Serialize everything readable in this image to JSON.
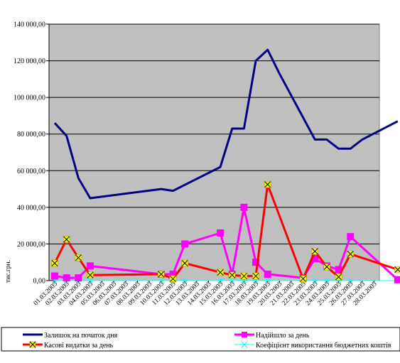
{
  "chart_data": {
    "type": "line",
    "ylabel": "тис.грн.",
    "ylim": [
      0,
      140000
    ],
    "yticks": [
      0,
      20000,
      40000,
      60000,
      80000,
      100000,
      120000,
      140000
    ],
    "ytick_labels": [
      "0,00",
      "20 000,00",
      "40 000,00",
      "60 000,00",
      "80 000,00",
      "100 000,00",
      "120 000,00",
      "140 000,00"
    ],
    "categories": [
      "01.03.2005",
      "02.03.2005",
      "03.03.2005",
      "04.03.2005",
      "05.03.2005",
      "06.03.2005",
      "07.03.2005",
      "08.03.2005",
      "09.03.2005",
      "10.03.2005",
      "11.03.2005",
      "12.03.2005",
      "13.03.2005",
      "14.03.2005",
      "15.03.2005",
      "16.03.2005",
      "17.03.2005",
      "18.03.2005",
      "19.03.2005",
      "20.03.2005",
      "21.03.2005",
      "22.03.2005",
      "23.03.2005",
      "24.03.2005",
      "25.03.2005",
      "26.03.2005",
      "27.03.2005",
      "28.03.2005"
    ],
    "grid": true,
    "background": "#c0c0c0",
    "legend_position": "bottom",
    "series": [
      {
        "name": "Залишок на початок дня",
        "color": "#000080",
        "marker": "none",
        "points": [
          [
            0,
            86000
          ],
          [
            1,
            79000
          ],
          [
            2,
            56000
          ],
          [
            3,
            45000
          ],
          [
            9,
            50000
          ],
          [
            10,
            49000
          ],
          [
            14,
            62000
          ],
          [
            15,
            83000
          ],
          [
            16,
            83000
          ],
          [
            17,
            120000
          ],
          [
            18,
            126000
          ],
          [
            19,
            113000
          ],
          [
            22,
            77000
          ],
          [
            23,
            77000
          ],
          [
            24,
            72000
          ],
          [
            25,
            72000
          ],
          [
            26,
            77000
          ],
          [
            29,
            87000
          ]
        ]
      },
      {
        "name": "Надійшло за день",
        "color": "#ff00ff",
        "marker": "square",
        "points": [
          [
            0,
            2500
          ],
          [
            1,
            1500
          ],
          [
            2,
            1500
          ],
          [
            3,
            8000
          ],
          [
            9,
            3500
          ],
          [
            10,
            3500
          ],
          [
            11,
            20000
          ],
          [
            14,
            26000
          ],
          [
            15,
            3500
          ],
          [
            16,
            40000
          ],
          [
            17,
            10000
          ],
          [
            18,
            3500
          ],
          [
            21,
            1500
          ],
          [
            22,
            12000
          ],
          [
            23,
            8000
          ],
          [
            24,
            6000
          ],
          [
            25,
            24000
          ],
          [
            29,
            500
          ]
        ]
      },
      {
        "name": "Касові видатки за день",
        "color": "#ff0000",
        "marker": "x-yellow",
        "points": [
          [
            0,
            9500
          ],
          [
            1,
            22500
          ],
          [
            2,
            12500
          ],
          [
            3,
            3000
          ],
          [
            9,
            3500
          ],
          [
            10,
            1000
          ],
          [
            11,
            9500
          ],
          [
            14,
            4500
          ],
          [
            15,
            3000
          ],
          [
            16,
            2500
          ],
          [
            17,
            2500
          ],
          [
            18,
            52500
          ],
          [
            21,
            1000
          ],
          [
            22,
            16000
          ],
          [
            23,
            7500
          ],
          [
            24,
            2000
          ],
          [
            25,
            14500
          ],
          [
            29,
            6000
          ]
        ]
      },
      {
        "name": "Коефіцієнт використання бюджетних коштів",
        "color": "#00ffff",
        "marker": "x",
        "points": [
          [
            0,
            0
          ],
          [
            1,
            0
          ],
          [
            2,
            0
          ],
          [
            3,
            0
          ],
          [
            9,
            0
          ],
          [
            10,
            0
          ],
          [
            11,
            0
          ],
          [
            14,
            0
          ],
          [
            15,
            0
          ],
          [
            16,
            0
          ],
          [
            17,
            0
          ],
          [
            18,
            0
          ],
          [
            21,
            0
          ],
          [
            22,
            0
          ],
          [
            23,
            0
          ],
          [
            24,
            0
          ],
          [
            25,
            0
          ],
          [
            29,
            0
          ]
        ]
      }
    ]
  }
}
